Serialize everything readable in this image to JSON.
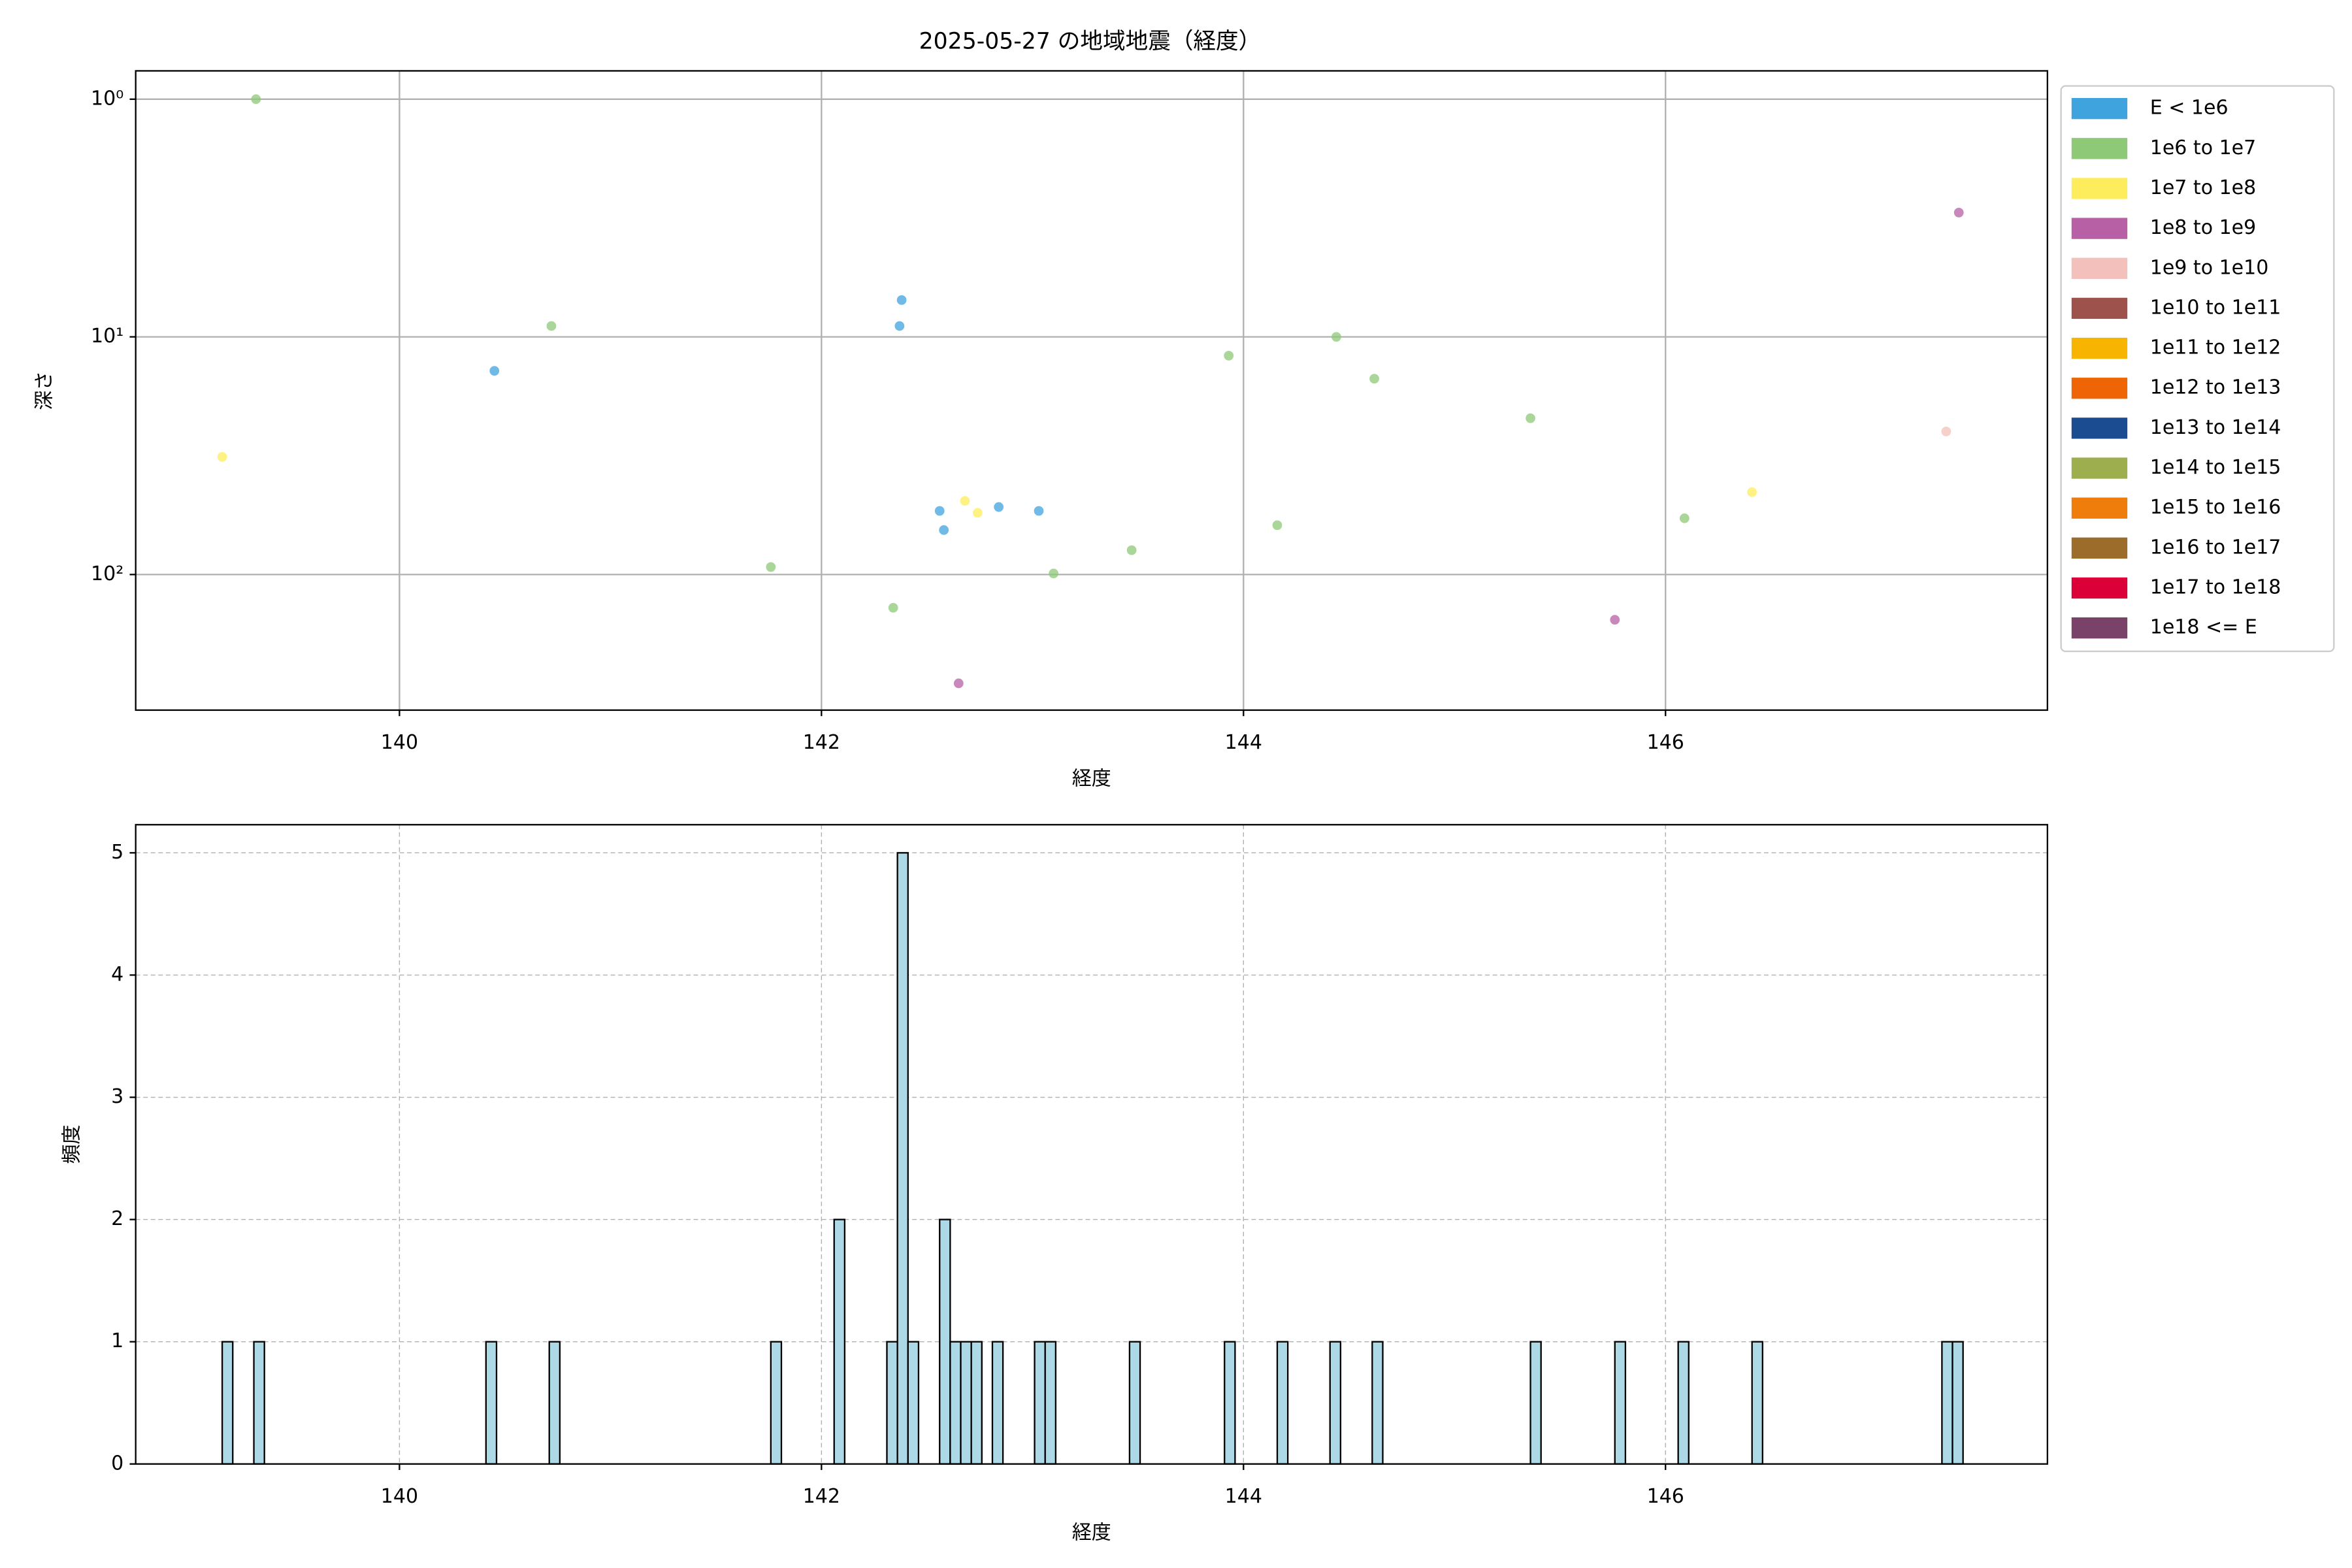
{
  "chart_data": [
    {
      "type": "scatter",
      "title": "2025-05-27 の地域地震（経度）",
      "x_label": "経度",
      "y_label": "深さ",
      "xlim": [
        138.75,
        147.81
      ],
      "xticks": [
        140,
        142,
        144,
        146
      ],
      "ylim": [
        0.76,
        372
      ],
      "y_log": true,
      "y_inverted": true,
      "yticks": [
        {
          "value": 1,
          "label": "10⁰"
        },
        {
          "value": 10,
          "label": "10¹"
        },
        {
          "value": 100,
          "label": "10²"
        }
      ],
      "grid": true,
      "legend": "outside-right",
      "series": [
        {
          "name": "E < 1e6",
          "color": "#3fa3dd",
          "x": [
            140.45,
            142.38,
            142.37,
            142.56,
            142.58,
            142.84,
            143.03
          ],
          "y": [
            13.9,
            7.0,
            9.0,
            54,
            65,
            52,
            54
          ]
        },
        {
          "name": "1e6 to 1e7",
          "color": "#8ec977",
          "x": [
            139.32,
            140.72,
            141.76,
            142.34,
            143.1,
            143.47,
            143.93,
            144.16,
            144.44,
            144.62,
            145.36,
            146.09
          ],
          "y": [
            1.0,
            9.0,
            93,
            138,
            99,
            79,
            12,
            62,
            10,
            15,
            22,
            58
          ]
        },
        {
          "name": "1e7 to 1e8",
          "color": "#fded5c",
          "x": [
            139.16,
            142.68,
            142.74,
            146.41
          ],
          "y": [
            32,
            49,
            55,
            45
          ]
        },
        {
          "name": "1e8 to 1e9",
          "color": "#b760a6",
          "x": [
            142.65,
            145.76,
            147.39
          ],
          "y": [
            287,
            155,
            3.0
          ]
        },
        {
          "name": "1e9 to 1e10",
          "color": "#f4c0bb",
          "x": [
            147.33
          ],
          "y": [
            25
          ]
        },
        {
          "name": "1e10 to 1e11",
          "color": "#9d524c",
          "x": [],
          "y": []
        },
        {
          "name": "1e11 to 1e12",
          "color": "#f7b400",
          "x": [],
          "y": []
        },
        {
          "name": "1e12 to 1e13",
          "color": "#ef6506",
          "x": [],
          "y": []
        },
        {
          "name": "1e13 to 1e14",
          "color": "#1b4b91",
          "x": [],
          "y": []
        },
        {
          "name": "1e14 to 1e15",
          "color": "#9cae4d",
          "x": [],
          "y": []
        },
        {
          "name": "1e15 to 1e16",
          "color": "#ef7d0c",
          "x": [],
          "y": []
        },
        {
          "name": "1e16 to 1e17",
          "color": "#9b6c2a",
          "x": [],
          "y": []
        },
        {
          "name": "1e17 to 1e18",
          "color": "#db0037",
          "x": [],
          "y": []
        },
        {
          "name": "1e18 <= E",
          "color": "#7a4269",
          "x": [],
          "y": []
        }
      ]
    },
    {
      "type": "histogram",
      "x_label": "経度",
      "y_label": "頻度",
      "color": "#add8e6",
      "xlim": [
        138.75,
        147.81
      ],
      "xticks": [
        140,
        142,
        144,
        146
      ],
      "ylim": [
        0,
        5.23
      ],
      "yticks": [
        0,
        1,
        2,
        3,
        4,
        5
      ],
      "grid": true,
      "bins": [
        139.16,
        139.21,
        139.26,
        139.31,
        139.36,
        139.41,
        139.46,
        139.51,
        139.56,
        139.61,
        139.66,
        139.71,
        139.76,
        139.81,
        139.86,
        139.91,
        139.96,
        140.01,
        140.06,
        140.11,
        140.16,
        140.21,
        140.26,
        140.31,
        140.36,
        140.41,
        140.46,
        140.51,
        140.56,
        140.61,
        140.66,
        140.71,
        140.76,
        140.81,
        140.86,
        140.91,
        140.96,
        141.01,
        141.06,
        141.11,
        141.16,
        141.21,
        141.26,
        141.31,
        141.36,
        141.41,
        141.46,
        141.51,
        141.56,
        141.61,
        141.66,
        141.71,
        141.76,
        141.81,
        141.86,
        141.91,
        141.96,
        142.01,
        142.06,
        142.11,
        142.16,
        142.21,
        142.26,
        142.31,
        142.36,
        142.41,
        142.46,
        142.51,
        142.56,
        142.61,
        142.66,
        142.71,
        142.76,
        142.81,
        142.86,
        142.91,
        142.96,
        143.01,
        143.06,
        143.11,
        143.16,
        143.21,
        143.26,
        143.31,
        143.36,
        143.41,
        143.46,
        143.51,
        143.56,
        143.61,
        143.66,
        143.71,
        143.76,
        143.81,
        143.86,
        143.91,
        143.96,
        144.01,
        144.06,
        144.11,
        144.16,
        144.21,
        144.26,
        144.31,
        144.36,
        144.41,
        144.46,
        144.51,
        144.56,
        144.61,
        144.66,
        144.71,
        144.76,
        144.81,
        144.86,
        144.91,
        144.96,
        145.01,
        145.06,
        145.11,
        145.16,
        145.21,
        145.26,
        145.31,
        145.36,
        145.41,
        145.46,
        145.51,
        145.56,
        145.61,
        145.66,
        145.71,
        145.76,
        145.81,
        145.86,
        145.91,
        145.96,
        146.01,
        146.06,
        146.11,
        146.16,
        146.21,
        146.26,
        146.31,
        146.36,
        146.41,
        146.46,
        146.51,
        146.56,
        146.61,
        146.66,
        146.71,
        146.76,
        146.81,
        146.86,
        146.91,
        146.96,
        147.01,
        147.06,
        147.11,
        147.16,
        147.21,
        147.26,
        147.31,
        147.36,
        147.41
      ],
      "counts": [
        1,
        0,
        0,
        1,
        0,
        0,
        0,
        0,
        0,
        0,
        0,
        0,
        0,
        0,
        0,
        0,
        0,
        0,
        0,
        0,
        0,
        0,
        0,
        0,
        0,
        1,
        0,
        0,
        0,
        0,
        0,
        1,
        0,
        0,
        0,
        0,
        0,
        0,
        0,
        0,
        0,
        0,
        0,
        0,
        0,
        0,
        0,
        0,
        0,
        0,
        0,
        0,
        1,
        0,
        0,
        0,
        0,
        0,
        2,
        0,
        0,
        0,
        0,
        1,
        5,
        1,
        0,
        0,
        2,
        1,
        1,
        1,
        0,
        1,
        0,
        0,
        0,
        1,
        1,
        0,
        0,
        0,
        0,
        0,
        0,
        0,
        1,
        0,
        0,
        0,
        0,
        0,
        0,
        0,
        0,
        1,
        0,
        0,
        0,
        0,
        1,
        0,
        0,
        0,
        0,
        1,
        0,
        0,
        0,
        1,
        0,
        0,
        0,
        0,
        0,
        0,
        0,
        0,
        0,
        0,
        0,
        0,
        0,
        0,
        1,
        0,
        0,
        0,
        0,
        0,
        0,
        0,
        1,
        0,
        0,
        0,
        0,
        0,
        1,
        0,
        0,
        0,
        0,
        0,
        0,
        1,
        0,
        0,
        0,
        0,
        0,
        0,
        0,
        0,
        0,
        0,
        0,
        0,
        0,
        0,
        0,
        0,
        0,
        1,
        1
      ]
    }
  ]
}
